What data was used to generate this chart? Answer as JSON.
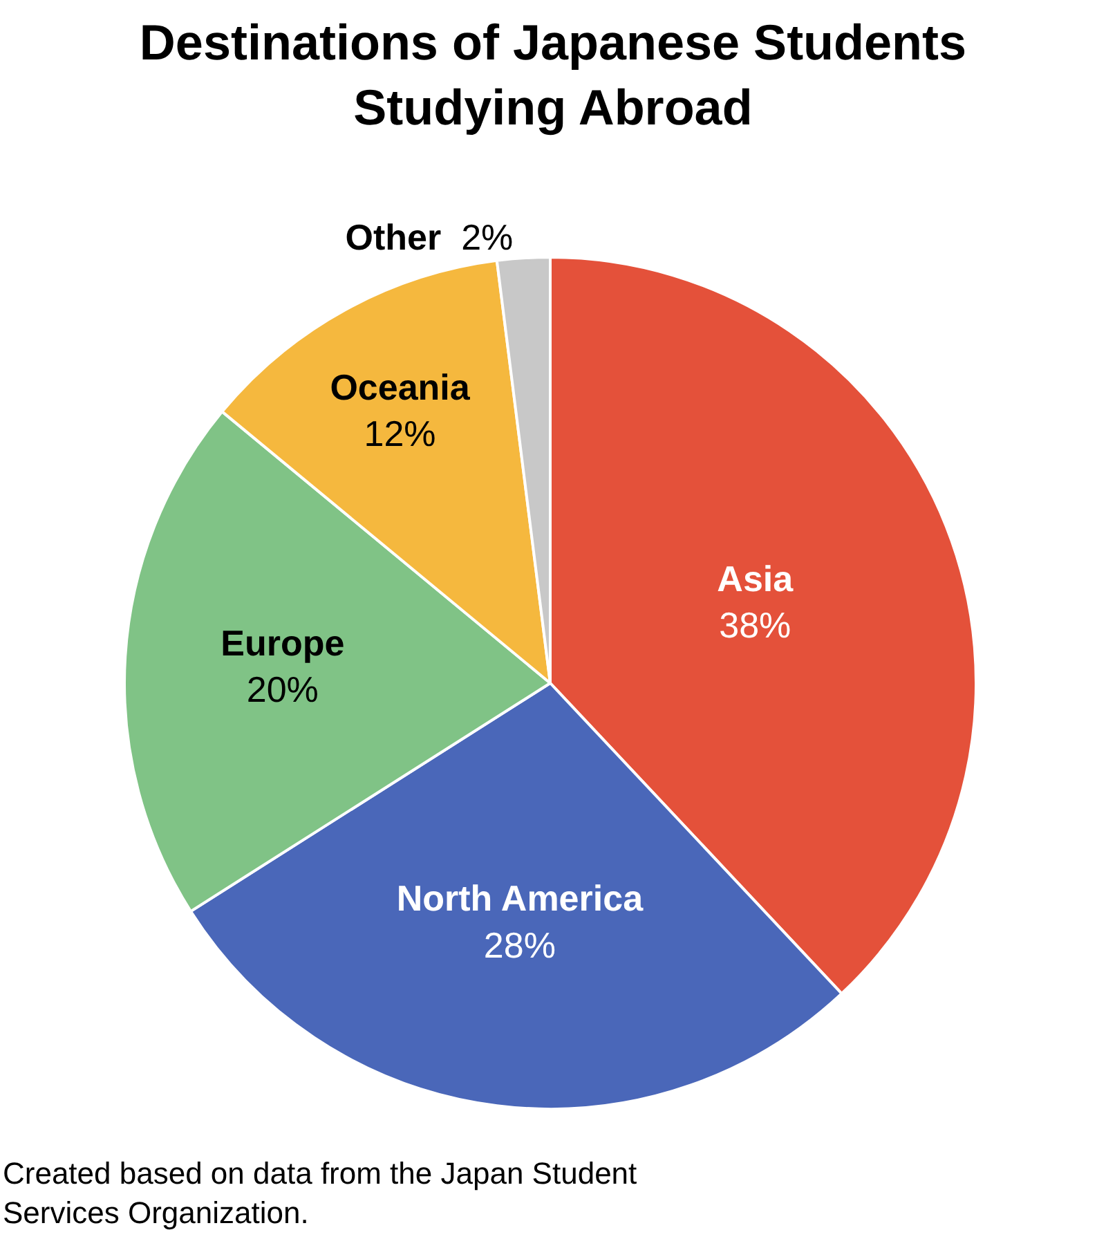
{
  "chart_data": {
    "type": "pie",
    "title": "Destinations of Japanese Students Studying Abroad",
    "categories": [
      "Asia",
      "North America",
      "Europe",
      "Oceania",
      "Other"
    ],
    "values": [
      38,
      28,
      20,
      12,
      2
    ],
    "value_labels": [
      "38%",
      "28%",
      "20%",
      "12%",
      "2%"
    ],
    "colors": [
      "#e4513a",
      "#4a67b9",
      "#80c386",
      "#f5b83e",
      "#c8c8c8"
    ],
    "legend": false,
    "annotations": [
      "Created based on data from the Japan Student Services Organization."
    ]
  }
}
